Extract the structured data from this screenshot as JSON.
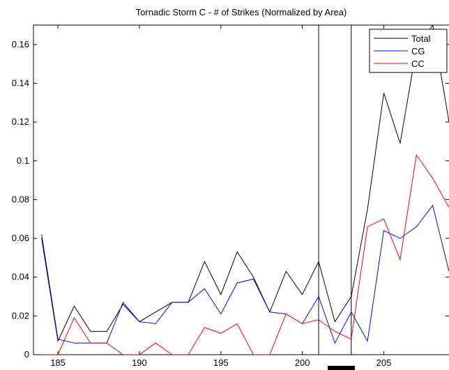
{
  "chart_data": {
    "type": "line",
    "title": "Tornadic Storm C - # of Strikes (Normalized by Area)",
    "xlabel": "",
    "ylabel": "",
    "xlim": [
      183.5,
      209
    ],
    "ylim": [
      0,
      0.17
    ],
    "grid": false,
    "legend_position": "top-right",
    "x_ticks": [
      185,
      190,
      195,
      200,
      205
    ],
    "x_tick_labels": [
      "185",
      "190",
      "195",
      "200",
      "205"
    ],
    "y_ticks": [
      0,
      0.02,
      0.04,
      0.06,
      0.08,
      0.1,
      0.12,
      0.14,
      0.16
    ],
    "y_tick_labels": [
      "0",
      "0.02",
      "0.04",
      "0.06",
      "0.08",
      "0.1",
      "0.12",
      "0.14",
      "0.16"
    ],
    "vertical_lines": [
      201,
      203
    ],
    "x": [
      184,
      185,
      186,
      187,
      188,
      189,
      190,
      191,
      192,
      193,
      194,
      195,
      196,
      197,
      198,
      199,
      200,
      201,
      202,
      203,
      204,
      205,
      206,
      207,
      208,
      209
    ],
    "series": [
      {
        "name": "Total",
        "color": "#000000",
        "values": [
          0.06,
          0.007,
          0.025,
          0.012,
          0.012,
          0.026,
          0.017,
          0.022,
          0.027,
          0.027,
          0.048,
          0.031,
          0.053,
          0.04,
          0.022,
          0.043,
          0.031,
          0.048,
          0.017,
          0.03,
          0.075,
          0.135,
          0.109,
          0.158,
          0.17,
          0.12
        ]
      },
      {
        "name": "CG",
        "color": "#0000ff",
        "values": [
          0.062,
          0.008,
          0.006,
          0.006,
          0.006,
          0.027,
          0.017,
          0.016,
          0.027,
          0.027,
          0.034,
          0.021,
          0.037,
          0.039,
          0.022,
          0.021,
          0.016,
          0.03,
          0.006,
          0.022,
          0.007,
          0.064,
          0.06,
          0.066,
          0.077,
          0.043
        ]
      },
      {
        "name": "CC",
        "color": "#ff0000",
        "values": [
          0.0,
          0.0,
          0.019,
          0.006,
          0.006,
          0.0,
          0.0,
          0.006,
          0.0,
          0.0,
          0.014,
          0.011,
          0.016,
          0.0,
          0.0,
          0.021,
          0.016,
          0.018,
          0.012,
          0.008,
          0.066,
          0.07,
          0.049,
          0.103,
          0.091,
          0.076
        ]
      }
    ]
  }
}
